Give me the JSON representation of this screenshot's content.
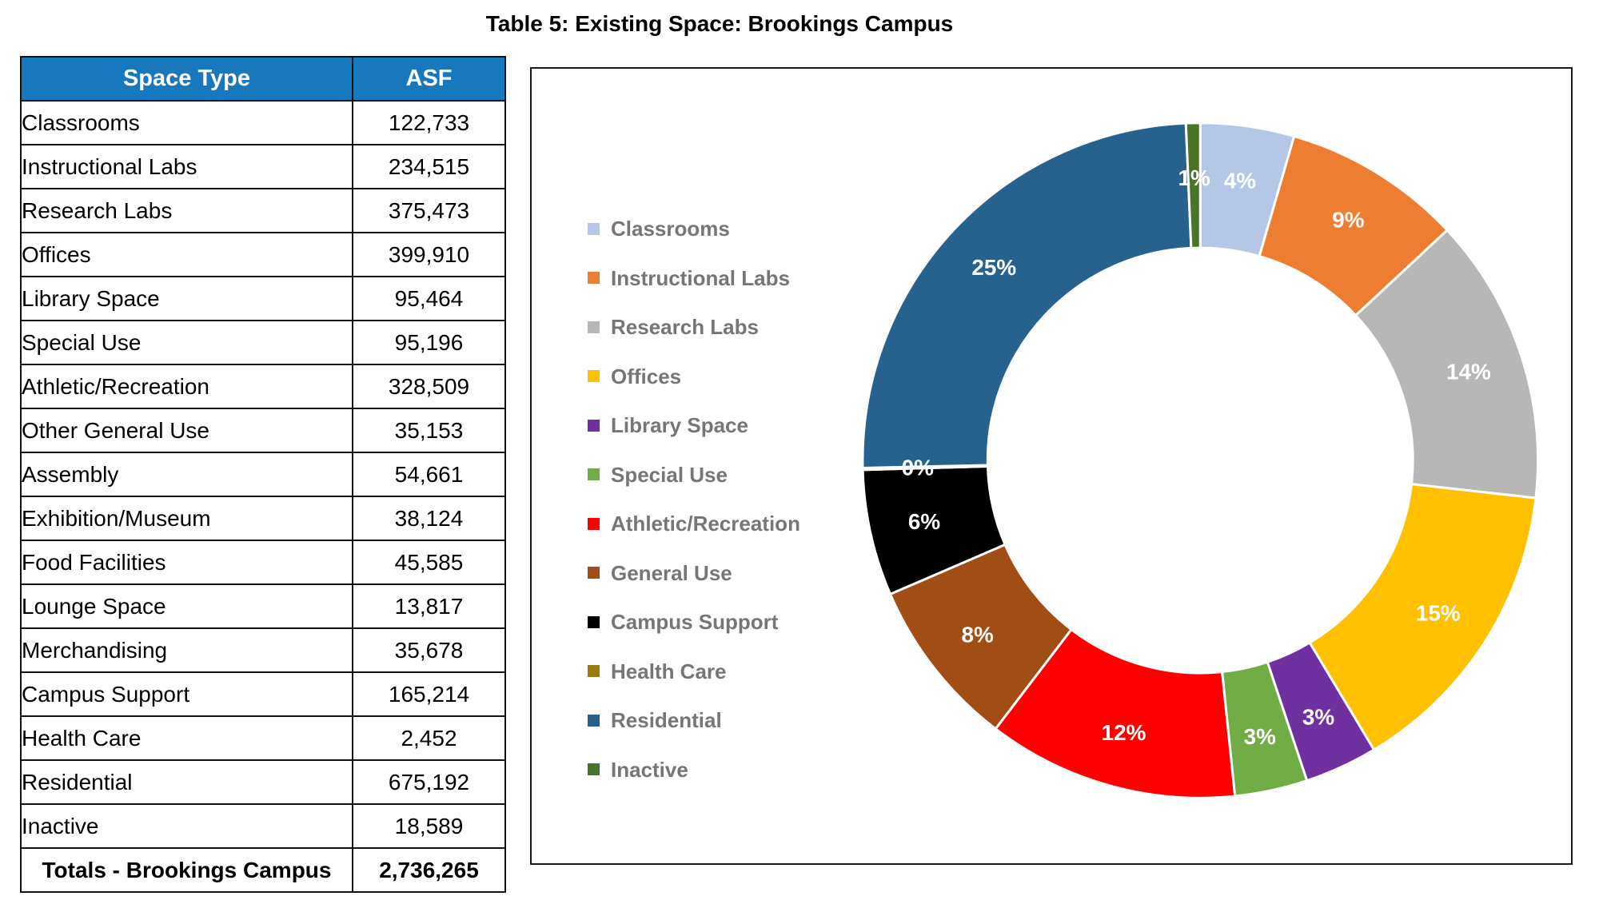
{
  "title": "Table 5: Existing Space: Brookings Campus",
  "table": {
    "headers": [
      "Space Type",
      "ASF"
    ],
    "header_bg": "#1878be",
    "header_text_color": "#ffffff",
    "rows": [
      [
        "Classrooms",
        "122,733"
      ],
      [
        "Instructional Labs",
        "234,515"
      ],
      [
        "Research Labs",
        "375,473"
      ],
      [
        "Offices",
        "399,910"
      ],
      [
        "Library Space",
        "95,464"
      ],
      [
        "Special Use",
        "95,196"
      ],
      [
        "Athletic/Recreation",
        "328,509"
      ],
      [
        "Other General Use",
        "35,153"
      ],
      [
        "Assembly",
        "54,661"
      ],
      [
        "Exhibition/Museum",
        "38,124"
      ],
      [
        "Food Facilities",
        "45,585"
      ],
      [
        "Lounge Space",
        "13,817"
      ],
      [
        "Merchandising",
        "35,678"
      ],
      [
        "Campus Support",
        "165,214"
      ],
      [
        "Health Care",
        "2,452"
      ],
      [
        "Residential",
        "675,192"
      ],
      [
        "Inactive",
        "18,589"
      ]
    ],
    "total_row": [
      "Totals - Brookings Campus",
      "2,736,265"
    ]
  },
  "chart_data": {
    "type": "pie",
    "subtype": "donut",
    "direction": "clockwise",
    "start_angle_deg": 0,
    "hole_ratio": 0.63,
    "legend_position": "left",
    "grid": false,
    "categories": [
      "Classrooms",
      "Instructional Labs",
      "Research Labs",
      "Offices",
      "Library Space",
      "Special Use",
      "Athletic/Recreation",
      "General Use",
      "Campus Support",
      "Health Care",
      "Residential",
      "Inactive"
    ],
    "values_pct": [
      4.4854,
      8.5707,
      13.7221,
      14.6152,
      3.4889,
      3.4791,
      12.0057,
      8.1504,
      6.038,
      0.0896,
      24.6757,
      0.6793
    ],
    "labels": [
      "4%",
      "9%",
      "14%",
      "15%",
      "3%",
      "3%",
      "12%",
      "8%",
      "6%",
      "0%",
      "25%",
      "1%"
    ],
    "colors": [
      "#b4c7e7",
      "#ed7d31",
      "#b7b7b7",
      "#ffc000",
      "#7030a0",
      "#70ad47",
      "#ff0000",
      "#a04e16",
      "#000000",
      "#9c7a10",
      "#27618e",
      "#4a7427"
    ],
    "label_color": "#ffffff",
    "legend_text_color": "#767676",
    "slice_border_color": "#ffffff"
  }
}
